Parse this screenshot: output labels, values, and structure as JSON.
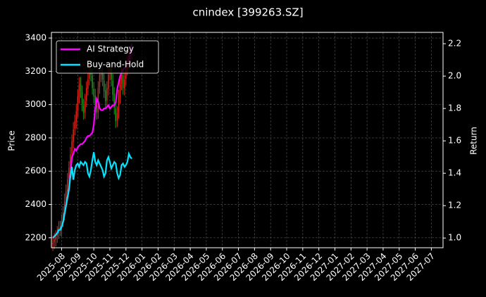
{
  "chart_data": {
    "type": "candlestick",
    "title": "cnindex [399263.SZ]",
    "y_label": "Price",
    "y2_label": "Return",
    "grid": true,
    "legend": "upper left",
    "up_color": "#e0291b",
    "down_color": "#1f9a1f",
    "x": [
      1,
      2,
      3,
      4,
      5,
      6,
      7,
      8,
      9,
      10,
      11,
      12,
      13,
      14,
      15,
      16,
      17,
      18,
      19,
      20,
      21,
      22,
      23,
      24,
      25,
      26,
      27,
      28,
      29,
      30,
      31,
      32,
      33,
      34,
      35,
      36,
      37,
      38,
      39,
      40,
      41,
      42,
      43,
      44,
      45,
      46,
      47,
      48,
      49,
      50,
      51,
      52,
      53,
      54,
      55
    ],
    "xlim": [
      0,
      268
    ],
    "xticks": [
      {
        "value": 7,
        "label": "2025-08"
      },
      {
        "value": 18,
        "label": "2025-09"
      },
      {
        "value": 29,
        "label": "2025-10"
      },
      {
        "value": 40,
        "label": "2025-11"
      },
      {
        "value": 51,
        "label": "2025-12"
      },
      {
        "value": 62,
        "label": "2026-01"
      },
      {
        "value": 73,
        "label": "2026-02"
      },
      {
        "value": 84,
        "label": "2026-03"
      },
      {
        "value": 95,
        "label": "2026-04"
      },
      {
        "value": 106,
        "label": "2026-05"
      },
      {
        "value": 117,
        "label": "2026-06"
      },
      {
        "value": 128,
        "label": "2026-07"
      },
      {
        "value": 139,
        "label": "2026-08"
      },
      {
        "value": 150,
        "label": "2026-09"
      },
      {
        "value": 161,
        "label": "2026-10"
      },
      {
        "value": 172,
        "label": "2026-11"
      },
      {
        "value": 183,
        "label": "2026-12"
      },
      {
        "value": 194,
        "label": "2027-01"
      },
      {
        "value": 205,
        "label": "2027-02"
      },
      {
        "value": 216,
        "label": "2027-03"
      },
      {
        "value": 227,
        "label": "2027-04"
      },
      {
        "value": 238,
        "label": "2027-05"
      },
      {
        "value": 249,
        "label": "2027-06"
      },
      {
        "value": 260,
        "label": "2027-07"
      }
    ],
    "ylim": [
      2140,
      3434
    ],
    "yticks": [
      2200,
      2400,
      2600,
      2800,
      3000,
      3200,
      3400
    ],
    "y2lim": [
      0.94,
      2.27
    ],
    "y2ticks": [
      {
        "value": 1,
        "label": "1.0"
      },
      1.2,
      1.4,
      1.6,
      1.8,
      {
        "value": 2,
        "label": "2.0"
      },
      2.2
    ],
    "candles": {
      "open": [
        2160,
        2172,
        2188,
        2210,
        2232,
        2262,
        2248,
        2305,
        2345,
        2425,
        2478,
        2555,
        2615,
        2705,
        2775,
        2855,
        2895,
        2965,
        3045,
        3125,
        3075,
        2995,
        2955,
        3025,
        3095,
        3155,
        3195,
        3175,
        3095,
        3055,
        2995,
        2955,
        3105,
        3175,
        3195,
        3145,
        3085,
        3025,
        3095,
        3185,
        3215,
        3145,
        3065,
        2975,
        2905,
        2955,
        3045,
        3125,
        3175,
        3095,
        3155,
        3215,
        3255,
        3275,
        3305
      ],
      "high": [
        2210,
        2230,
        2245,
        2270,
        2300,
        2302,
        2340,
        2390,
        2465,
        2520,
        2590,
        2660,
        2745,
        2820,
        2895,
        2940,
        3005,
        3090,
        3165,
        3165,
        3115,
        3035,
        3065,
        3140,
        3195,
        3240,
        3235,
        3215,
        3135,
        3095,
        3035,
        3140,
        3220,
        3240,
        3235,
        3185,
        3125,
        3140,
        3225,
        3260,
        3255,
        3185,
        3105,
        3015,
        2990,
        3090,
        3165,
        3220,
        3215,
        3195,
        3260,
        3295,
        3320,
        3340,
        3360
      ],
      "low": [
        2120,
        2132,
        2148,
        2170,
        2192,
        2210,
        2208,
        2265,
        2305,
        2385,
        2438,
        2515,
        2575,
        2665,
        2735,
        2815,
        2855,
        2925,
        3005,
        3040,
        2960,
        2910,
        2915,
        2985,
        3055,
        3115,
        3140,
        3060,
        3010,
        2960,
        2910,
        2915,
        3065,
        3135,
        3110,
        3040,
        2980,
        2985,
        3055,
        3145,
        3110,
        3020,
        2940,
        2860,
        2865,
        2915,
        3005,
        3085,
        3060,
        3055,
        3115,
        3175,
        3215,
        3235,
        3265
      ],
      "close": [
        2170,
        2190,
        2205,
        2230,
        2260,
        2250,
        2300,
        2350,
        2420,
        2480,
        2550,
        2620,
        2700,
        2780,
        2850,
        2900,
        2960,
        3050,
        3120,
        3080,
        3000,
        2950,
        3020,
        3100,
        3150,
        3200,
        3180,
        3100,
        3050,
        3000,
        2950,
        3100,
        3180,
        3200,
        3150,
        3080,
        3020,
        3100,
        3180,
        3220,
        3150,
        3060,
        2980,
        2900,
        2950,
        3050,
        3120,
        3180,
        3100,
        3150,
        3220,
        3250,
        3280,
        3300,
        3320
      ]
    },
    "series": [
      {
        "name": "AI Strategy",
        "color": "#ff00ff",
        "axis": "y2",
        "values": [
          1.0,
          1.01,
          1.02,
          1.03,
          1.05,
          1.05,
          1.07,
          1.1,
          1.15,
          1.2,
          1.25,
          1.3,
          1.4,
          1.5,
          1.52,
          1.55,
          1.54,
          1.56,
          1.57,
          1.58,
          1.58,
          1.59,
          1.6,
          1.62,
          1.63,
          1.63,
          1.64,
          1.65,
          1.7,
          1.8,
          1.86,
          1.84,
          1.8,
          1.79,
          1.79,
          1.8,
          1.8,
          1.81,
          1.82,
          1.8,
          1.81,
          1.82,
          1.82,
          1.84,
          1.92,
          1.96,
          2.0,
          2.02,
          2.04,
          2.05,
          2.06,
          2.07,
          2.1,
          2.15,
          2.2
        ]
      },
      {
        "name": "Buy-and-Hold",
        "color": "#00e5ff",
        "axis": "y2",
        "values": [
          1.0,
          1.01,
          1.02,
          1.03,
          1.05,
          1.05,
          1.07,
          1.1,
          1.15,
          1.2,
          1.25,
          1.3,
          1.38,
          1.44,
          1.36,
          1.42,
          1.45,
          1.46,
          1.44,
          1.47,
          1.46,
          1.45,
          1.47,
          1.46,
          1.4,
          1.38,
          1.42,
          1.48,
          1.53,
          1.47,
          1.45,
          1.48,
          1.46,
          1.44,
          1.42,
          1.38,
          1.4,
          1.48,
          1.5,
          1.47,
          1.43,
          1.45,
          1.47,
          1.46,
          1.4,
          1.37,
          1.39,
          1.45,
          1.46,
          1.44,
          1.45,
          1.47,
          1.52,
          1.5,
          1.49
        ]
      }
    ]
  }
}
